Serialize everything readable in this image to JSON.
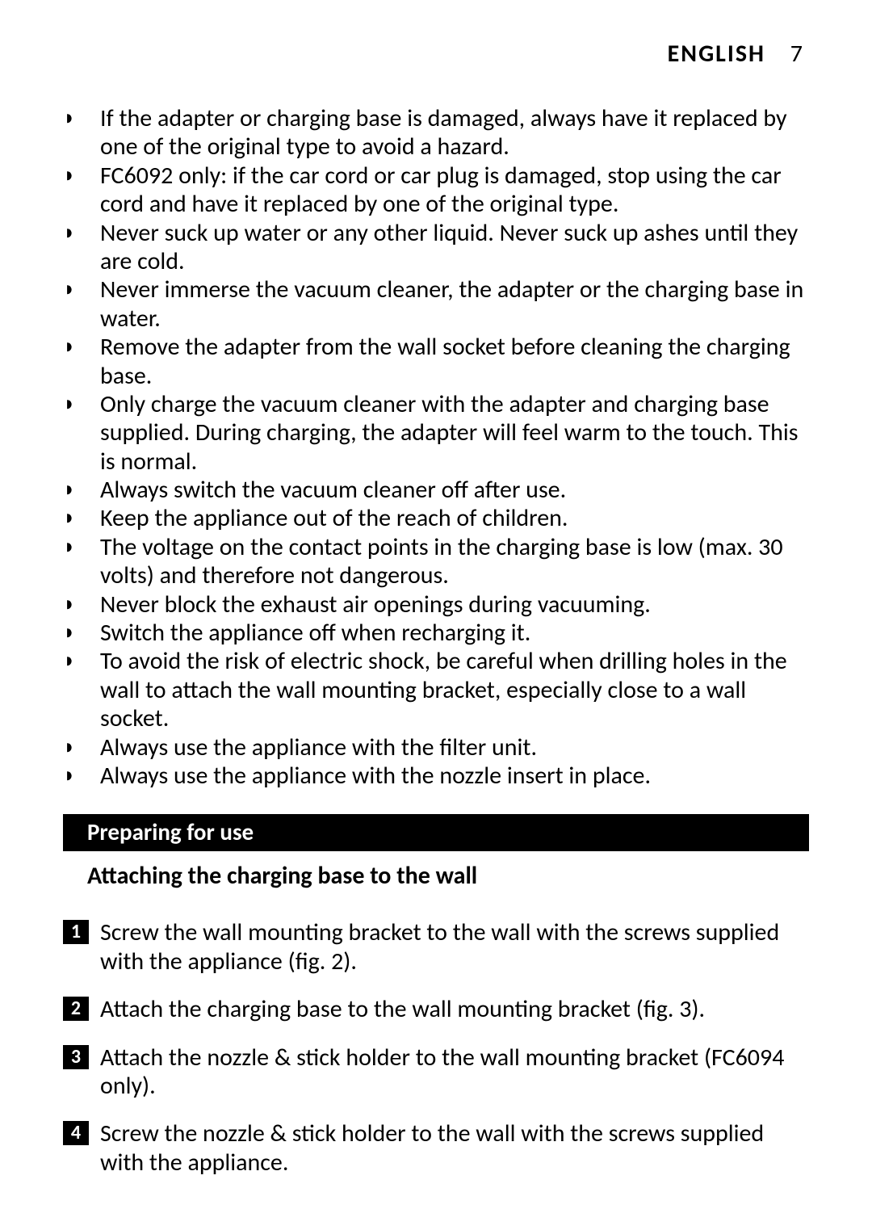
{
  "header": {
    "language": "ENGLISH",
    "page_number": "7"
  },
  "bullets": [
    "If the adapter or charging base is damaged, always have it replaced by one of the original type to avoid a hazard.",
    "FC6092 only: if the car cord or car plug is damaged, stop using the car cord and have it replaced by one of the original type.",
    "Never suck up water or any other liquid. Never suck up ashes until they are cold.",
    "Never immerse the vacuum cleaner, the adapter or the charging base in water.",
    "Remove the adapter from the wall socket before cleaning the charging base.",
    "Only charge the vacuum cleaner with the adapter and charging base supplied. During charging, the adapter will feel warm to the touch. This is normal.",
    "Always switch the vacuum cleaner off after use.",
    "Keep the appliance out of the reach of children.",
    "The voltage on the contact points in the charging base is low (max. 30 volts) and therefore not dangerous.",
    "Never block the exhaust air openings during vacuuming.",
    "Switch the appliance off when recharging it.",
    "To avoid the risk of electric shock, be careful when drilling holes in the wall to attach the wall mounting bracket, especially close to a wall socket.",
    "Always use the appliance with the filter unit.",
    "Always use the appliance with the nozzle insert in place."
  ],
  "section": {
    "title": "Preparing for use",
    "subheading": "Attaching the charging base to the wall"
  },
  "steps": [
    "Screw the wall mounting bracket to the wall with the screws supplied with the appliance (fig. 2).",
    "Attach the charging base to the wall mounting bracket (fig. 3).",
    "Attach the nozzle & stick holder to the wall mounting bracket (FC6094 only).",
    "Screw the nozzle & stick holder to the wall with the screws supplied with the appliance."
  ]
}
